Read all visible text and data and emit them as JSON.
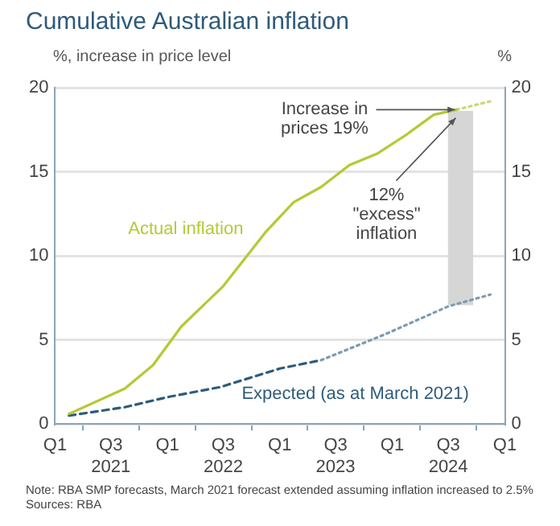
{
  "chart_data": {
    "type": "line",
    "title": "Cumulative Australian inflation",
    "ylabel": "%, increase in price level",
    "y2label": "%",
    "xlim": [
      "2021-01-01",
      "2025-01-01"
    ],
    "xticks": [
      {
        "value": "2021-01-01",
        "label": "Q1"
      },
      {
        "value": "2021-07-01",
        "label": "Q3\n2021"
      },
      {
        "value": "2022-01-01",
        "label": "Q1"
      },
      {
        "value": "2022-07-01",
        "label": "Q3\n2022"
      },
      {
        "value": "2023-01-01",
        "label": "Q1"
      },
      {
        "value": "2023-07-01",
        "label": "Q3\n2023"
      },
      {
        "value": "2024-01-01",
        "label": "Q1"
      },
      {
        "value": "2024-07-01",
        "label": "Q3\n2024"
      },
      {
        "value": "2025-01-01",
        "label": "Q1"
      }
    ],
    "ylim": [
      0,
      20
    ],
    "yticks": [
      0,
      5,
      10,
      15,
      20
    ],
    "y2lim": [
      0,
      20
    ],
    "y2ticks": [
      0,
      5,
      10,
      15,
      20
    ],
    "grid": "y",
    "legend": false,
    "marker": "none",
    "series": [
      {
        "name": "Actual inflation",
        "color": "#b5c935",
        "line_style": "solid",
        "x": [
          "2021-02-15",
          "2021-08-15",
          "2021-11-15",
          "2022-02-15",
          "2022-07-01",
          "2022-11-15",
          "2023-02-15",
          "2023-05-15",
          "2023-08-15",
          "2023-11-15",
          "2024-02-15",
          "2024-05-15",
          "2024-07-28"
        ],
        "values": [
          0.6,
          2.1,
          3.5,
          5.8,
          8.2,
          11.4,
          13.2,
          14.1,
          15.4,
          16.1,
          17.2,
          18.4,
          18.7
        ]
      },
      {
        "color": "#c9d96a",
        "line_style": "dotted",
        "x": [
          "2024-07-28",
          "2024-11-15"
        ],
        "values": [
          18.7,
          19.2
        ]
      },
      {
        "name": "Expected (as at March 2021)",
        "color": "#2e5b7a",
        "line_style": "dashed",
        "x": [
          "2021-02-15",
          "2021-08-15",
          "2022-01-01",
          "2022-06-22",
          "2023-01-01",
          "2023-05-15"
        ],
        "values": [
          0.5,
          1.0,
          1.6,
          2.2,
          3.3,
          3.8
        ]
      },
      {
        "color": "#7d9bb3",
        "line_style": "dotted",
        "x": [
          "2023-05-15",
          "2023-12-04",
          "2024-07-01",
          "2024-11-15"
        ],
        "values": [
          3.8,
          5.3,
          7.0,
          7.7
        ]
      },
      {
        "type": "bar",
        "color": "#d6d6d6",
        "x": [
          "2024-08-10"
        ],
        "base": [
          7.1
        ],
        "values": [
          11.5
        ]
      }
    ],
    "annotations": [
      {
        "text": "Increase in prices 19%",
        "x": "2024-07-28",
        "y": 18.7
      },
      {
        "text": "12% \"excess\" inflation",
        "x": "2024-08-10",
        "y": 18.4
      },
      "Note: RBA SMP forecasts, March 2021 forecast extended assuming inflation increased to 2.5%",
      "Sources: RBA"
    ]
  }
}
